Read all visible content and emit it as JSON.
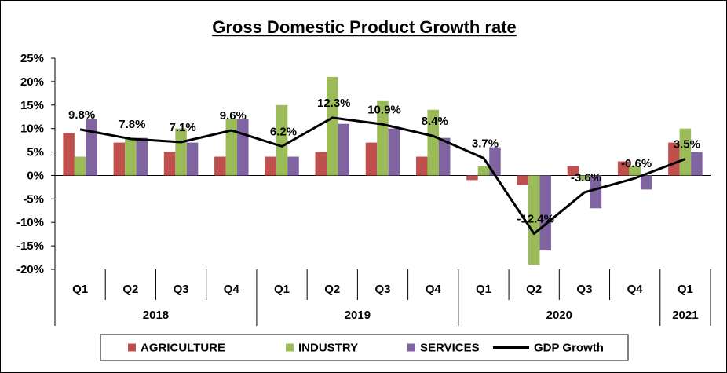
{
  "chart_data": {
    "type": "bar",
    "title": "Gross Domestic Product Growth rate",
    "quarters": [
      "Q1",
      "Q2",
      "Q3",
      "Q4",
      "Q1",
      "Q2",
      "Q3",
      "Q4",
      "Q1",
      "Q2",
      "Q3",
      "Q4",
      "Q1"
    ],
    "years": [
      {
        "label": "2018",
        "count": 4
      },
      {
        "label": "2019",
        "count": 4
      },
      {
        "label": "2020",
        "count": 4
      },
      {
        "label": "2021",
        "count": 1
      }
    ],
    "ylim": [
      -20,
      25
    ],
    "yticks": [
      -20,
      -15,
      -10,
      -5,
      0,
      5,
      10,
      15,
      20,
      25
    ],
    "ytick_labels": [
      "-20%",
      "-15%",
      "-10%",
      "-5%",
      "0%",
      "5%",
      "10%",
      "15%",
      "20%",
      "25%"
    ],
    "series": [
      {
        "name": "AGRICULTURE",
        "type": "bar",
        "color": "#c0504d",
        "values": [
          9,
          7,
          5,
          4,
          4,
          5,
          7,
          4,
          -1,
          -2,
          2,
          3,
          7
        ]
      },
      {
        "name": "INDUSTRY",
        "type": "bar",
        "color": "#9bbb59",
        "values": [
          4,
          8,
          10,
          12,
          15,
          21,
          16,
          14,
          2,
          -19,
          -1,
          2,
          10
        ]
      },
      {
        "name": "SERVICES",
        "type": "bar",
        "color": "#8064a2",
        "values": [
          12,
          8,
          7,
          12,
          4,
          11,
          10,
          8,
          6,
          -16,
          -7,
          -3,
          5
        ]
      },
      {
        "name": "GDP Growth",
        "type": "line",
        "color": "#000000",
        "values": [
          9.8,
          7.8,
          7.1,
          9.6,
          6.2,
          12.3,
          10.9,
          8.4,
          3.7,
          -12.4,
          -3.6,
          -0.6,
          3.5
        ],
        "labels": [
          "9.8%",
          "7.8%",
          "7.1%",
          "9.6%",
          "6.2%",
          "12.3%",
          "10.9%",
          "8.4%",
          "3.7%",
          "-12.4%",
          "-3.6%",
          "-0.6%",
          "3.5%"
        ]
      }
    ],
    "legend": [
      "AGRICULTURE",
      "INDUSTRY",
      "SERVICES",
      "GDP Growth"
    ],
    "legend_position": "bottom",
    "grid": false
  }
}
